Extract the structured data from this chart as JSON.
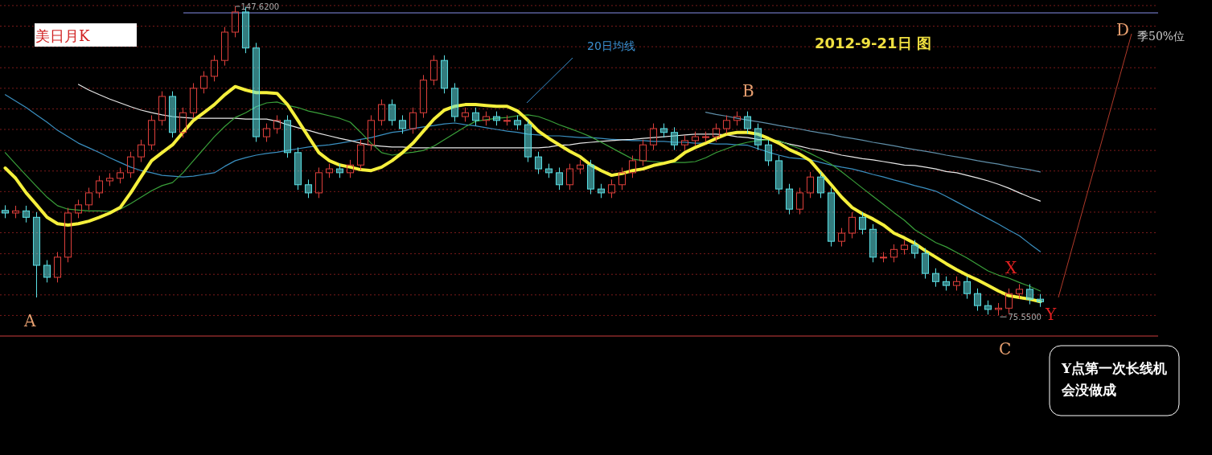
{
  "chart_data": {
    "type": "candlestick",
    "categories": [
      null,
      null,
      null,
      null,
      null,
      null,
      null,
      null,
      null,
      null,
      null,
      null,
      null,
      null,
      null,
      null,
      null,
      null,
      null,
      null,
      null,
      null,
      null,
      null,
      null,
      null,
      null,
      null,
      null,
      null,
      null,
      null,
      null,
      null,
      null,
      null,
      null,
      null,
      null,
      null,
      null,
      null,
      null,
      null,
      null,
      null,
      null,
      null,
      null,
      null,
      null,
      null,
      null,
      null,
      null,
      null,
      null,
      null,
      null,
      null,
      null,
      null,
      null,
      null,
      null,
      null,
      null,
      null,
      null,
      null,
      null,
      null,
      null,
      null,
      null,
      null,
      null,
      null,
      null,
      null,
      null,
      null,
      null,
      null,
      null,
      null,
      null,
      null,
      null,
      null,
      null,
      null,
      null,
      null,
      null,
      null,
      null,
      null,
      null,
      null
    ],
    "ohlc": [
      [
        100.0,
        101.2,
        98.2,
        99.4
      ],
      [
        99.4,
        101.1,
        98.2,
        99.9
      ],
      [
        99.9,
        101.1,
        97.2,
        98.4
      ],
      [
        98.4,
        99.6,
        79.7,
        87.2
      ],
      [
        87.2,
        88.4,
        83.2,
        84.4
      ],
      [
        84.4,
        90.3,
        83.2,
        89.1
      ],
      [
        89.1,
        100.6,
        87.9,
        99.4
      ],
      [
        99.4,
        102.5,
        98.2,
        101.3
      ],
      [
        101.3,
        105.3,
        100.1,
        104.1
      ],
      [
        104.1,
        108.1,
        102.9,
        106.9
      ],
      [
        106.9,
        108.7,
        105.7,
        107.5
      ],
      [
        107.5,
        110.0,
        106.3,
        108.8
      ],
      [
        108.8,
        113.7,
        107.6,
        112.5
      ],
      [
        112.5,
        116.5,
        111.3,
        115.3
      ],
      [
        115.3,
        122.2,
        114.1,
        121.0
      ],
      [
        121.0,
        127.8,
        119.8,
        126.6
      ],
      [
        126.6,
        127.8,
        117.0,
        118.2
      ],
      [
        118.2,
        124.0,
        117.0,
        122.8
      ],
      [
        122.8,
        129.7,
        121.6,
        128.5
      ],
      [
        128.5,
        132.5,
        127.3,
        131.3
      ],
      [
        131.3,
        136.2,
        130.1,
        135.0
      ],
      [
        135.0,
        142.8,
        133.8,
        141.6
      ],
      [
        141.6,
        147.62,
        140.4,
        146.3
      ],
      [
        146.3,
        147.5,
        136.7,
        137.9
      ],
      [
        137.9,
        139.1,
        116.0,
        117.2
      ],
      [
        117.2,
        120.3,
        116.0,
        119.1
      ],
      [
        119.1,
        122.2,
        117.9,
        121.0
      ],
      [
        121.0,
        122.2,
        112.3,
        113.5
      ],
      [
        113.5,
        114.7,
        104.8,
        106.0
      ],
      [
        106.0,
        107.2,
        102.9,
        104.1
      ],
      [
        104.1,
        110.0,
        102.9,
        108.8
      ],
      [
        108.8,
        110.9,
        107.6,
        109.7
      ],
      [
        109.7,
        110.9,
        107.6,
        108.8
      ],
      [
        108.8,
        111.8,
        107.6,
        110.6
      ],
      [
        110.6,
        116.5,
        109.4,
        115.3
      ],
      [
        115.3,
        122.2,
        114.1,
        121.0
      ],
      [
        121.0,
        125.9,
        119.8,
        124.7
      ],
      [
        124.7,
        125.9,
        119.8,
        121.0
      ],
      [
        121.0,
        122.2,
        117.9,
        119.1
      ],
      [
        119.1,
        124.0,
        117.9,
        122.8
      ],
      [
        122.8,
        131.6,
        121.6,
        130.4
      ],
      [
        130.4,
        136.2,
        129.2,
        135.0
      ],
      [
        135.0,
        136.2,
        127.3,
        128.5
      ],
      [
        128.5,
        129.7,
        120.7,
        121.9
      ],
      [
        121.9,
        124.0,
        120.7,
        122.8
      ],
      [
        122.8,
        124.0,
        119.8,
        121.0
      ],
      [
        121.0,
        123.1,
        119.8,
        121.9
      ],
      [
        121.9,
        123.1,
        119.8,
        121.0
      ],
      [
        121.0,
        122.2,
        119.8,
        121.0
      ],
      [
        121.0,
        122.2,
        118.8,
        120.0
      ],
      [
        120.0,
        121.2,
        111.3,
        112.5
      ],
      [
        112.5,
        113.7,
        108.5,
        109.7
      ],
      [
        109.7,
        110.9,
        107.6,
        108.8
      ],
      [
        108.8,
        110.0,
        104.8,
        106.0
      ],
      [
        106.0,
        110.9,
        104.8,
        109.7
      ],
      [
        109.7,
        111.8,
        108.5,
        110.6
      ],
      [
        110.6,
        111.8,
        103.8,
        105.0
      ],
      [
        105.0,
        106.2,
        102.9,
        104.1
      ],
      [
        104.1,
        107.2,
        102.9,
        106.0
      ],
      [
        106.0,
        110.0,
        104.8,
        108.8
      ],
      [
        108.8,
        112.8,
        107.6,
        111.6
      ],
      [
        111.6,
        116.5,
        110.4,
        115.3
      ],
      [
        115.3,
        120.3,
        114.1,
        119.1
      ],
      [
        119.1,
        120.3,
        117.0,
        118.2
      ],
      [
        118.2,
        119.4,
        114.1,
        115.3
      ],
      [
        115.3,
        117.5,
        114.1,
        116.3
      ],
      [
        116.3,
        118.4,
        115.1,
        117.2
      ],
      [
        117.2,
        118.4,
        116.0,
        117.2
      ],
      [
        117.2,
        120.3,
        116.0,
        119.1
      ],
      [
        119.1,
        122.2,
        117.9,
        121.0
      ],
      [
        121.0,
        123.1,
        119.8,
        121.9
      ],
      [
        121.9,
        123.1,
        117.9,
        119.1
      ],
      [
        119.1,
        120.3,
        114.1,
        115.3
      ],
      [
        115.3,
        116.5,
        110.4,
        111.6
      ],
      [
        111.6,
        112.8,
        103.8,
        105.0
      ],
      [
        105.0,
        106.2,
        99.1,
        100.3
      ],
      [
        100.3,
        105.3,
        99.1,
        104.1
      ],
      [
        104.1,
        109.0,
        102.9,
        107.8
      ],
      [
        107.8,
        109.0,
        102.9,
        104.1
      ],
      [
        104.1,
        105.3,
        91.6,
        92.8
      ],
      [
        92.8,
        95.9,
        91.6,
        94.7
      ],
      [
        94.7,
        99.6,
        93.5,
        98.4
      ],
      [
        98.4,
        99.6,
        94.4,
        95.6
      ],
      [
        95.6,
        96.8,
        87.9,
        89.1
      ],
      [
        89.1,
        90.3,
        87.9,
        89.1
      ],
      [
        89.1,
        92.1,
        87.9,
        90.9
      ],
      [
        90.9,
        93.1,
        89.7,
        91.9
      ],
      [
        91.9,
        93.1,
        88.8,
        90.0
      ],
      [
        90.0,
        91.2,
        84.1,
        85.3
      ],
      [
        85.3,
        86.5,
        82.2,
        83.4
      ],
      [
        83.4,
        84.6,
        81.3,
        82.5
      ],
      [
        82.5,
        84.6,
        81.3,
        83.4
      ],
      [
        83.4,
        84.6,
        79.4,
        80.6
      ],
      [
        80.6,
        81.8,
        76.6,
        77.8
      ],
      [
        77.8,
        79.0,
        75.7,
        76.9
      ],
      [
        76.9,
        78.4,
        75.55,
        77.2
      ],
      [
        77.2,
        81.8,
        76.0,
        80.6
      ],
      [
        80.6,
        82.8,
        79.4,
        81.6
      ],
      [
        81.6,
        82.8,
        78.1,
        79.3
      ],
      [
        79.3,
        80.5,
        77.5,
        78.7
      ]
    ],
    "series": [
      {
        "type": "line",
        "color": "#3a8fc0",
        "values": [
          127.0,
          125.5,
          124.0,
          122.3,
          120.6,
          118.7,
          117.2,
          115.7,
          114.6,
          113.5,
          112.3,
          111.2,
          110.1,
          109.3,
          108.8,
          108.2,
          108.0,
          107.8,
          108.0,
          108.4,
          108.8,
          110.3,
          111.6,
          112.3,
          112.9,
          113.3,
          113.6,
          114.0,
          114.4,
          114.8,
          115.1,
          115.3,
          115.7,
          116.1,
          116.6,
          117.0,
          117.6,
          118.2,
          118.5,
          119.1,
          119.5,
          119.8,
          120.2,
          120.4,
          120.0,
          119.7,
          119.3,
          118.9,
          118.5,
          118.2,
          117.8,
          117.6,
          117.4,
          117.4,
          117.2,
          117.0,
          117.0,
          116.8,
          116.6,
          116.5,
          116.3,
          116.3,
          116.1,
          116.1,
          115.9,
          115.9,
          115.7,
          115.7,
          115.5,
          115.5,
          115.3,
          115.2,
          114.4,
          113.6,
          112.9,
          112.3,
          112.1,
          111.8,
          111.2,
          110.6,
          110.1,
          109.7,
          109.1,
          108.4,
          107.8,
          107.1,
          106.5,
          105.8,
          105.2,
          104.5,
          103.3,
          102.0,
          100.7,
          99.4,
          98.1,
          96.8,
          95.4,
          94.1,
          92.2,
          90.4
        ]
      },
      {
        "type": "line",
        "color": "#e8e8e8",
        "values": [
          null,
          null,
          null,
          null,
          null,
          null,
          null,
          129.4,
          128.1,
          127.0,
          126.0,
          125.1,
          124.2,
          123.4,
          122.8,
          122.3,
          121.9,
          121.7,
          121.5,
          121.5,
          121.5,
          121.5,
          121.5,
          121.3,
          121.3,
          121.3,
          120.8,
          120.0,
          119.3,
          118.7,
          118.0,
          117.4,
          116.8,
          116.3,
          115.7,
          115.2,
          115.0,
          114.8,
          114.8,
          114.6,
          114.6,
          114.6,
          114.6,
          114.6,
          114.6,
          114.6,
          114.6,
          114.6,
          114.6,
          114.6,
          114.6,
          114.6,
          114.8,
          115.2,
          115.3,
          115.7,
          115.9,
          116.1,
          116.3,
          116.5,
          116.6,
          116.8,
          117.0,
          117.2,
          117.4,
          117.6,
          117.8,
          117.8,
          117.8,
          117.6,
          117.2,
          117.0,
          116.6,
          116.5,
          116.1,
          115.5,
          115.0,
          114.4,
          114.0,
          113.5,
          112.9,
          112.5,
          112.1,
          111.8,
          111.4,
          111.0,
          110.6,
          110.5,
          110.1,
          109.7,
          109.1,
          108.8,
          108.2,
          107.6,
          106.9,
          106.1,
          105.2,
          104.1,
          103.1,
          102.2
        ]
      },
      {
        "type": "line",
        "color": "#3aa03a",
        "values": [
          113.5,
          110.8,
          108.2,
          105.6,
          103.1,
          101.1,
          100.3,
          100.1,
          99.9,
          99.9,
          99.8,
          100.3,
          101.6,
          103.1,
          104.6,
          105.8,
          106.5,
          108.8,
          111.6,
          114.4,
          117.2,
          119.6,
          121.7,
          122.8,
          124.2,
          125.1,
          125.3,
          124.5,
          124.0,
          123.2,
          122.7,
          122.1,
          121.5,
          120.6,
          118.2,
          115.7,
          113.5,
          112.9,
          113.3,
          113.6,
          114.0,
          115.0,
          116.5,
          118.0,
          119.5,
          120.8,
          121.2,
          121.5,
          121.7,
          122.1,
          122.3,
          121.9,
          121.0,
          120.0,
          119.1,
          118.2,
          117.2,
          115.9,
          114.6,
          113.3,
          112.0,
          111.6,
          111.4,
          111.2,
          111.2,
          111.2,
          111.4,
          112.3,
          113.5,
          114.4,
          115.3,
          115.9,
          116.3,
          116.5,
          116.3,
          115.3,
          114.4,
          113.3,
          112.1,
          110.8,
          109.0,
          107.1,
          105.2,
          103.3,
          101.4,
          99.5,
          97.7,
          95.5,
          94.0,
          92.5,
          91.5,
          90.2,
          88.9,
          87.4,
          85.9,
          84.9,
          84.2,
          83.2,
          82.3,
          81.2
        ]
      },
      {
        "type": "line",
        "color": "#5f8ea8",
        "values": [
          null,
          null,
          null,
          null,
          null,
          null,
          null,
          null,
          null,
          null,
          null,
          null,
          null,
          null,
          null,
          null,
          null,
          null,
          null,
          null,
          null,
          null,
          null,
          null,
          null,
          null,
          null,
          null,
          null,
          null,
          null,
          null,
          null,
          null,
          null,
          null,
          null,
          null,
          null,
          null,
          null,
          null,
          null,
          null,
          null,
          null,
          null,
          null,
          null,
          null,
          null,
          null,
          null,
          null,
          null,
          null,
          null,
          null,
          null,
          null,
          null,
          null,
          null,
          null,
          null,
          null,
          null,
          122.9,
          122.4,
          122.0,
          121.5,
          121.1,
          120.7,
          120.3,
          119.8,
          119.4,
          119.0,
          118.5,
          118.1,
          117.7,
          117.2,
          116.8,
          116.4,
          115.9,
          115.5,
          115.1,
          114.6,
          114.2,
          113.8,
          113.4,
          112.9,
          112.5,
          112.1,
          111.6,
          111.2,
          110.8,
          110.3,
          109.9,
          109.5,
          109.0
        ]
      },
      {
        "type": "line",
        "color": "#f5f03c",
        "values": [
          109.9,
          107.5,
          104.1,
          101.3,
          98.4,
          96.9,
          96.6,
          96.9,
          97.5,
          98.4,
          99.4,
          100.7,
          104.1,
          107.9,
          111.6,
          113.5,
          115.3,
          118.2,
          121.0,
          122.8,
          124.7,
          127.0,
          128.9,
          128.1,
          127.5,
          127.5,
          127.3,
          124.7,
          121.0,
          117.2,
          113.5,
          111.6,
          110.6,
          110.1,
          109.5,
          109.3,
          110.1,
          111.6,
          113.5,
          115.7,
          118.5,
          121.3,
          123.4,
          124.3,
          124.7,
          124.7,
          124.5,
          124.3,
          124.3,
          123.2,
          121.0,
          118.5,
          116.8,
          115.3,
          113.8,
          112.5,
          110.6,
          109.3,
          108.2,
          108.6,
          109.3,
          109.7,
          110.5,
          111.0,
          111.6,
          113.5,
          114.7,
          115.7,
          116.8,
          117.8,
          118.2,
          118.2,
          117.8,
          116.8,
          115.7,
          114.2,
          113.1,
          111.6,
          108.8,
          106.0,
          103.1,
          100.7,
          99.2,
          98.0,
          96.6,
          94.7,
          93.6,
          92.3,
          90.6,
          89.1,
          87.6,
          86.2,
          84.9,
          83.8,
          82.5,
          81.2,
          80.1,
          79.7,
          79.3,
          78.7
        ]
      }
    ],
    "ylim": [
      70.7,
      149.1
    ],
    "yticks": [
      {
        "value": 147.8,
        "label": null
      },
      {
        "value": 143.0,
        "label": null
      },
      {
        "value": 138.2,
        "label": null
      },
      {
        "value": 133.3,
        "label": null
      },
      {
        "value": 128.5,
        "label": null
      },
      {
        "value": 123.7,
        "label": null
      },
      {
        "value": 118.9,
        "label": null
      },
      {
        "value": 114.0,
        "label": null
      },
      {
        "value": 109.2,
        "label": null
      },
      {
        "value": 104.4,
        "label": null
      },
      {
        "value": 99.6,
        "label": null
      },
      {
        "value": 94.8,
        "label": null
      },
      {
        "value": 89.9,
        "label": null
      },
      {
        "value": 85.1,
        "label": null
      },
      {
        "value": 80.3,
        "label": null
      },
      {
        "value": 75.5,
        "label": null
      }
    ],
    "tick_labels": false,
    "grid": "y",
    "ref_lines": [
      {
        "axis": "y",
        "value": 146.1,
        "color": "#5a5f9a"
      }
    ],
    "annotations": [
      "美日月K",
      "2012-9-21日 图",
      "20日均线",
      "A",
      "B",
      "C",
      "D",
      "X",
      "Y",
      "季50%位",
      "147.6200",
      "75.5500",
      "Y点第一次长线机会没做成"
    ]
  }
}
